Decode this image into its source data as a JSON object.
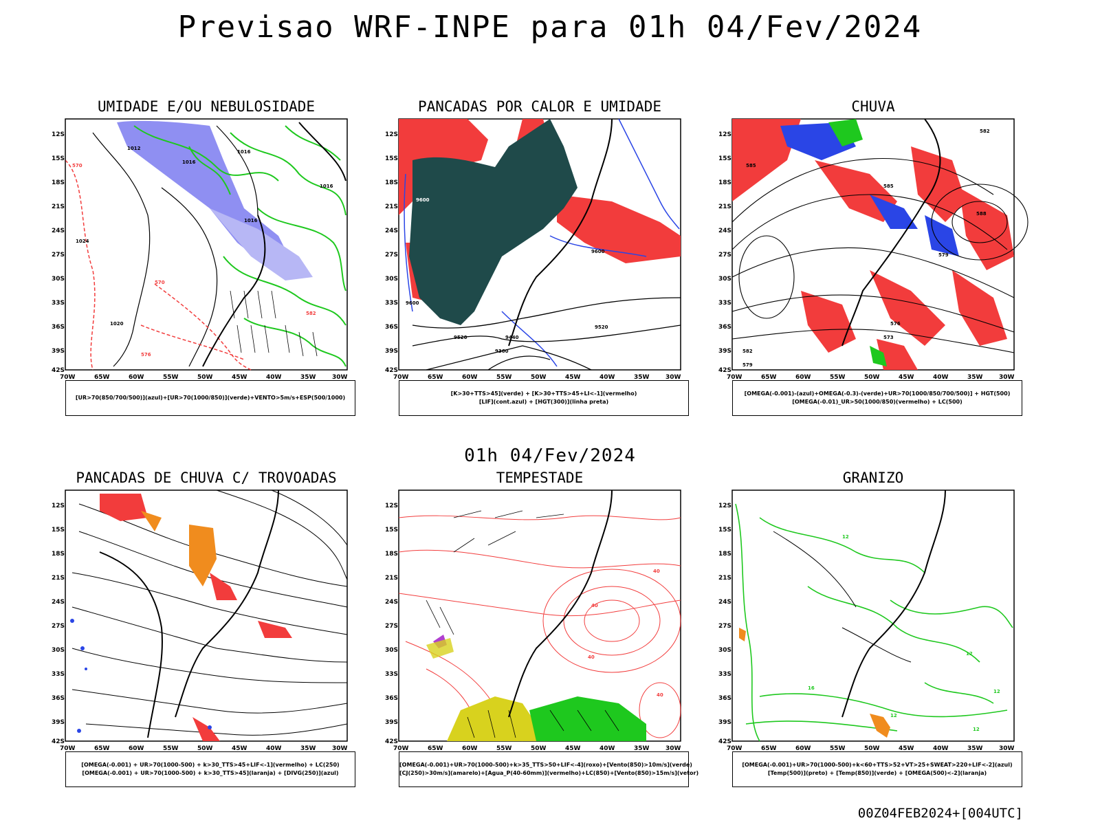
{
  "header": {
    "title": "Previsao WRF-INPE  para 01h 04/Fev/2024"
  },
  "middle": {
    "time_label": "01h 04/Fev/2024"
  },
  "footer": {
    "run_label": "00Z04FEB2024+[004UTC]"
  },
  "axes": {
    "lat_labels": [
      "12S",
      "15S",
      "18S",
      "21S",
      "24S",
      "27S",
      "30S",
      "33S",
      "36S",
      "39S",
      "42S"
    ],
    "lon_labels": [
      "70W",
      "65W",
      "60W",
      "55W",
      "50W",
      "45W",
      "40W",
      "35W",
      "30W"
    ]
  },
  "panels": [
    {
      "title": "UMIDADE E/OU NEBULOSIDADE",
      "legend": [
        "[UR>70(850/700/500)](azul)+[UR>70(1000/850)](verde)+VENTO>5m/s+ESP(500/1000)"
      ],
      "contour_labels": [
        "1012",
        "1016",
        "1016",
        "1016",
        "1016",
        "1020",
        "1024",
        "570",
        "570",
        "576",
        "582"
      ]
    },
    {
      "title": "PANCADAS POR CALOR E UMIDADE",
      "legend": [
        "[K>30+TTS>45](verde) + [K>30+TTS>45+LI<-1](vermelho)",
        "[LIF](cont.azul) + [HGT(300)](linha preta)"
      ],
      "contour_labels": [
        "9600",
        "9600",
        "9600",
        "9520",
        "9520",
        "9440",
        "9360"
      ]
    },
    {
      "title": "CHUVA",
      "legend": [
        "[OMEGA(-0.001)-(azul)+OMEGA(-0.3)-(verde)+UR>70(1000/850/700/500)] + HGT(500)",
        "[OMEGA(-0.01)_UR>50(1000/850)(vermelho) + LC(500)"
      ],
      "contour_labels": [
        "582",
        "585",
        "585",
        "588",
        "579",
        "576",
        "573",
        "582",
        "579"
      ]
    },
    {
      "title": "PANCADAS DE CHUVA C/ TROVOADAS",
      "legend": [
        "[OMEGA(-0.001) + UR>70(1000-500) + k>30_TTS>45+LIF<-1](vermelho) + LC(250)",
        "[OMEGA(-0.001) + UR>70(1000-500) + k>30_TTS>45](laranja) + [DIVG(250)](azul)"
      ],
      "contour_labels": []
    },
    {
      "title": "TEMPESTADE",
      "legend": [
        "[OMEGA(-0.001)+UR>70(1000-500)+k>35_TTS>50+LIF<-4](roxo)+[Vento(850)>10m/s](verde)",
        "[CJ(250)>30m/s](amarelo)+[Agua_P(40-60mm)](vermelho)+LC(850)+[Vento(850)>15m/s](vetor)"
      ],
      "contour_labels": [
        "40",
        "40",
        "40",
        "40"
      ]
    },
    {
      "title": "GRANIZO",
      "legend": [
        "[OMEGA(-0.001)+UR>70(1000-500)+k<60+TTS>52+VT>25+SWEAT>220+LIF<-2](azul)",
        "[Temp(500)](preto) + [Temp(850)](verde) + [OMEGA(500)<-2](laranja)"
      ],
      "contour_labels": [
        "12",
        "12",
        "12",
        "16",
        "12",
        "12"
      ]
    }
  ],
  "colors": {
    "blue_fill": "#7b7bf0",
    "green_line": "#1ec81e",
    "red_fill": "#f23c3c",
    "dark_teal": "#1f4a4a",
    "orange": "#f08c1e",
    "yellow": "#d8d21e"
  }
}
